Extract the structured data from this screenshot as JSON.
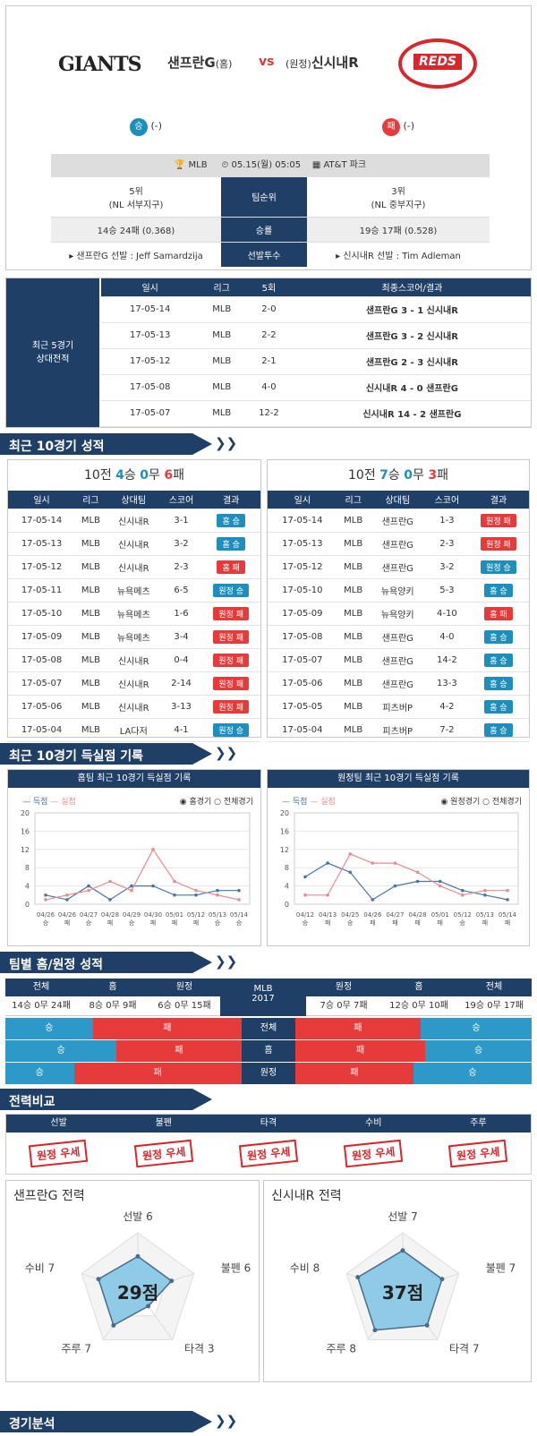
{
  "header": {
    "home_team": "샌프란G",
    "home_tag": "(홈)",
    "vs": "vs",
    "away_tag": "(원정)",
    "away_team": "신시내R",
    "home_logo": "GIANTS",
    "away_logo": "REDS",
    "home_result": "승",
    "home_result_val": "(-)",
    "away_result": "패",
    "away_result_val": "(-)"
  },
  "info": {
    "league": "MLB",
    "date": "05.15(월) 05:05",
    "venue": "AT&T 파크",
    "home_rank": "5위",
    "home_div": "(NL 서부지구)",
    "rank_label": "팀순위",
    "away_rank": "3위",
    "away_div": "(NL 중부지구)",
    "home_record": "14승 24패 (0.368)",
    "rec_label": "승률",
    "away_record": "19승 17패 (0.528)",
    "home_pitcher": "▸ 샌프란G 선발 : Jeff Samardzija",
    "pitch_label": "선발투수",
    "away_pitcher": "▸ 신시내R 선발 : Tim Adleman"
  },
  "h2h": {
    "label": "최근 5경기\n상대전적",
    "headers": [
      "일시",
      "리그",
      "5회",
      "최종스코어/결과"
    ],
    "rows": [
      [
        "17-05-14",
        "MLB",
        "2-0",
        "샌프란G 3 - 1 신시내R"
      ],
      [
        "17-05-13",
        "MLB",
        "2-2",
        "샌프란G 3 - 2 신시내R"
      ],
      [
        "17-05-12",
        "MLB",
        "2-1",
        "샌프란G 2 - 3 신시내R"
      ],
      [
        "17-05-08",
        "MLB",
        "4-0",
        "신시내R 4 - 0 샌프란G"
      ],
      [
        "17-05-07",
        "MLB",
        "12-2",
        "신시내R 14 - 2 샌프란G"
      ]
    ]
  },
  "recent": {
    "title": "최근 10경기 성적",
    "home_summary": "10전 4승 0무 6패",
    "away_summary": "10전 7승 0무 3패",
    "headers": [
      "일시",
      "리그",
      "상대팀",
      "스코어",
      "결과"
    ],
    "home_rows": [
      [
        "17-05-14",
        "MLB",
        "신시내R",
        "3-1",
        "홈 승"
      ],
      [
        "17-05-13",
        "MLB",
        "신시내R",
        "3-2",
        "홈 승"
      ],
      [
        "17-05-12",
        "MLB",
        "신시내R",
        "2-3",
        "홈 패"
      ],
      [
        "17-05-11",
        "MLB",
        "뉴욕메츠",
        "6-5",
        "원정 승"
      ],
      [
        "17-05-10",
        "MLB",
        "뉴욕메츠",
        "1-6",
        "원정 패"
      ],
      [
        "17-05-09",
        "MLB",
        "뉴욕메츠",
        "3-4",
        "원정 패"
      ],
      [
        "17-05-08",
        "MLB",
        "신시내R",
        "0-4",
        "원정 패"
      ],
      [
        "17-05-07",
        "MLB",
        "신시내R",
        "2-14",
        "원정 패"
      ],
      [
        "17-05-06",
        "MLB",
        "신시내R",
        "3-13",
        "원정 패"
      ],
      [
        "17-05-04",
        "MLB",
        "LA다저",
        "4-1",
        "원정 승"
      ]
    ],
    "away_rows": [
      [
        "17-05-14",
        "MLB",
        "샌프란G",
        "1-3",
        "원정 패"
      ],
      [
        "17-05-13",
        "MLB",
        "샌프란G",
        "2-3",
        "원정 패"
      ],
      [
        "17-05-12",
        "MLB",
        "샌프란G",
        "3-2",
        "원정 승"
      ],
      [
        "17-05-10",
        "MLB",
        "뉴욕양키",
        "5-3",
        "홈 승"
      ],
      [
        "17-05-09",
        "MLB",
        "뉴욕양키",
        "4-10",
        "홈 패"
      ],
      [
        "17-05-08",
        "MLB",
        "샌프란G",
        "4-0",
        "홈 승"
      ],
      [
        "17-05-07",
        "MLB",
        "샌프란G",
        "14-2",
        "홈 승"
      ],
      [
        "17-05-06",
        "MLB",
        "샌프란G",
        "13-3",
        "홈 승"
      ],
      [
        "17-05-05",
        "MLB",
        "피츠버P",
        "4-2",
        "홈 승"
      ],
      [
        "17-05-04",
        "MLB",
        "피츠버P",
        "7-2",
        "홈 승"
      ]
    ]
  },
  "score_sec": {
    "title": "최근 10경기 득실점 기록",
    "home_title": "홈팀 최근 10경기 득실점 기록",
    "away_title": "원정팀 최근 10경기 득실점 기록",
    "legend_for": "득점",
    "legend_against": "실점",
    "home_opt1": "홈경기",
    "home_opt2": "전체경기",
    "away_opt1": "원정경기",
    "away_opt2": "전체경기"
  },
  "chart_data": [
    {
      "type": "line",
      "ylim": [
        0,
        20
      ],
      "yticks": [
        0,
        4,
        8,
        12,
        16,
        20
      ],
      "categories": [
        "04/26 승",
        "04/26 패",
        "04/27 승",
        "04/28 패",
        "04/29 승",
        "04/30 패",
        "05/01 패",
        "05/12 패",
        "05/13 승",
        "05/14 승"
      ],
      "series": [
        {
          "name": "득점",
          "values": [
            2,
            1,
            4,
            1,
            4,
            4,
            2,
            2,
            3,
            3
          ]
        },
        {
          "name": "실점",
          "values": [
            1,
            2,
            3,
            5,
            3,
            12,
            5,
            3,
            2,
            1
          ]
        }
      ]
    },
    {
      "type": "line",
      "ylim": [
        0,
        20
      ],
      "yticks": [
        0,
        4,
        8,
        12,
        16,
        20
      ],
      "categories": [
        "04/12 승",
        "04/13 패",
        "04/25 승",
        "04/26 패",
        "04/27 패",
        "04/28 패",
        "05/01 패",
        "05/12 승",
        "05/13 패",
        "05/14 패"
      ],
      "series": [
        {
          "name": "득점",
          "values": [
            6,
            9,
            7,
            1,
            4,
            5,
            5,
            3,
            2,
            1
          ]
        },
        {
          "name": "실점",
          "values": [
            2,
            2,
            11,
            9,
            9,
            7,
            4,
            2,
            3,
            3
          ]
        }
      ]
    }
  ],
  "teamrec": {
    "title": "팀별 홈/원정 성적",
    "h_total": "전체",
    "h_home": "홈",
    "h_away": "원정",
    "mid1": "MLB",
    "mid2": "2017",
    "v1": "14승 0무 24패",
    "v2": "8승 0무 9패",
    "v3": "6승 0무 15패",
    "v4": "7승 0무 7패",
    "v5": "12승 0무 10패",
    "v6": "19승 0무 17패",
    "win": "승",
    "lose": "패",
    "rows": [
      "전체",
      "홈",
      "원정"
    ],
    "bars": [
      [
        0.37,
        0.63,
        0.53,
        0.47
      ],
      [
        0.47,
        0.53,
        0.55,
        0.45
      ],
      [
        0.29,
        0.71,
        0.5,
        0.5
      ]
    ]
  },
  "compare": {
    "title": "전력비교",
    "cols": [
      "선발",
      "불펜",
      "타격",
      "수비",
      "주루"
    ],
    "stamp": "원정 우세"
  },
  "radar": {
    "home_title": "샌프란G 전력",
    "away_title": "신시내R 전력",
    "axes": [
      "선발",
      "불펜",
      "타격",
      "주루",
      "수비"
    ],
    "home_vals": [
      6,
      6,
      3,
      7,
      7
    ],
    "away_vals": [
      7,
      7,
      7,
      8,
      8
    ],
    "home_score": "29점",
    "away_score": "37점"
  },
  "analysis": {
    "title": "경기분석"
  }
}
